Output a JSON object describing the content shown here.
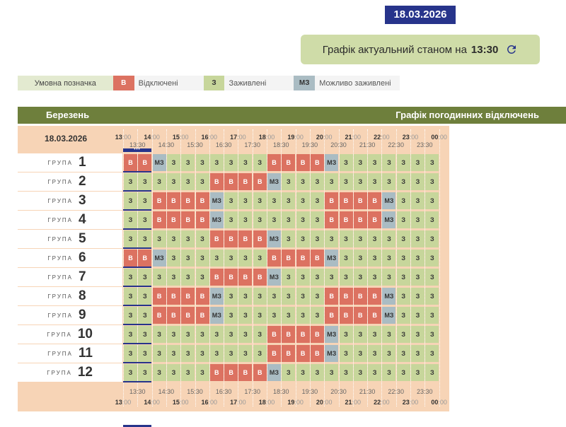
{
  "header": {
    "date": "18.03.2026",
    "status_label": "Графік актуальний станом на",
    "status_time": "13:30",
    "refresh_icon": "refresh-icon"
  },
  "legend": {
    "caption": "Умовна позначка",
    "items": [
      {
        "code": "В",
        "label": "Відключені",
        "color": "#dc7261"
      },
      {
        "code": "З",
        "label": "Заживлені",
        "color": "#c7d69b"
      },
      {
        "code": "МЗ",
        "label": "Можливо заживлені",
        "color": "#aabcc3"
      }
    ]
  },
  "schedule": {
    "month": "Березень",
    "title": "Графік погодинних відключень",
    "date": "18.03.2026",
    "hour_ticks": [
      {
        "h": "13",
        "m": ":00"
      },
      {
        "h": "14",
        "m": ":00"
      },
      {
        "h": "15",
        "m": ":00"
      },
      {
        "h": "16",
        "m": ":00"
      },
      {
        "h": "17",
        "m": ":00"
      },
      {
        "h": "18",
        "m": ":00"
      },
      {
        "h": "19",
        "m": ":00"
      },
      {
        "h": "20",
        "m": ":00"
      },
      {
        "h": "21",
        "m": ":00"
      },
      {
        "h": "22",
        "m": ":00"
      },
      {
        "h": "23",
        "m": ":00"
      },
      {
        "h": "00",
        "m": ":00"
      }
    ],
    "half_ticks": [
      "13:30",
      "14:30",
      "15:30",
      "16:30",
      "17:30",
      "18:30",
      "19:30",
      "20:30",
      "21:30",
      "22:30",
      "23:30"
    ],
    "current_marker": "•••",
    "group_word": "ГРУПА",
    "groups": [
      {
        "num": "1",
        "cells": [
          "В",
          "В",
          "МЗ",
          "З",
          "З",
          "З",
          "З",
          "З",
          "З",
          "З",
          "В",
          "В",
          "В",
          "В",
          "МЗ",
          "З",
          "З",
          "З",
          "З",
          "З",
          "З",
          "З"
        ]
      },
      {
        "num": "2",
        "cells": [
          "З",
          "З",
          "З",
          "З",
          "З",
          "З",
          "В",
          "В",
          "В",
          "В",
          "МЗ",
          "З",
          "З",
          "З",
          "З",
          "З",
          "З",
          "З",
          "З",
          "З",
          "З",
          "З"
        ]
      },
      {
        "num": "3",
        "cells": [
          "З",
          "З",
          "В",
          "В",
          "В",
          "В",
          "МЗ",
          "З",
          "З",
          "З",
          "З",
          "З",
          "З",
          "З",
          "В",
          "В",
          "В",
          "В",
          "МЗ",
          "З",
          "З",
          "З"
        ]
      },
      {
        "num": "4",
        "cells": [
          "З",
          "З",
          "В",
          "В",
          "В",
          "В",
          "МЗ",
          "З",
          "З",
          "З",
          "З",
          "З",
          "З",
          "З",
          "В",
          "В",
          "В",
          "В",
          "МЗ",
          "З",
          "З",
          "З"
        ]
      },
      {
        "num": "5",
        "cells": [
          "З",
          "З",
          "З",
          "З",
          "З",
          "З",
          "В",
          "В",
          "В",
          "В",
          "МЗ",
          "З",
          "З",
          "З",
          "З",
          "З",
          "З",
          "З",
          "З",
          "З",
          "З",
          "З"
        ]
      },
      {
        "num": "6",
        "cells": [
          "В",
          "В",
          "МЗ",
          "З",
          "З",
          "З",
          "З",
          "З",
          "З",
          "З",
          "В",
          "В",
          "В",
          "В",
          "МЗ",
          "З",
          "З",
          "З",
          "З",
          "З",
          "З",
          "З"
        ]
      },
      {
        "num": "7",
        "cells": [
          "З",
          "З",
          "З",
          "З",
          "З",
          "З",
          "В",
          "В",
          "В",
          "В",
          "МЗ",
          "З",
          "З",
          "З",
          "З",
          "З",
          "З",
          "З",
          "З",
          "З",
          "З",
          "З"
        ]
      },
      {
        "num": "8",
        "cells": [
          "З",
          "З",
          "В",
          "В",
          "В",
          "В",
          "МЗ",
          "З",
          "З",
          "З",
          "З",
          "З",
          "З",
          "З",
          "В",
          "В",
          "В",
          "В",
          "МЗ",
          "З",
          "З",
          "З"
        ]
      },
      {
        "num": "9",
        "cells": [
          "З",
          "З",
          "В",
          "В",
          "В",
          "В",
          "МЗ",
          "З",
          "З",
          "З",
          "З",
          "З",
          "З",
          "З",
          "В",
          "В",
          "В",
          "В",
          "МЗ",
          "З",
          "З",
          "З"
        ]
      },
      {
        "num": "10",
        "cells": [
          "З",
          "З",
          "З",
          "З",
          "З",
          "З",
          "З",
          "З",
          "З",
          "З",
          "В",
          "В",
          "В",
          "В",
          "МЗ",
          "З",
          "З",
          "З",
          "З",
          "З",
          "З",
          "З"
        ]
      },
      {
        "num": "11",
        "cells": [
          "З",
          "З",
          "З",
          "З",
          "З",
          "З",
          "З",
          "З",
          "З",
          "З",
          "В",
          "В",
          "В",
          "В",
          "МЗ",
          "З",
          "З",
          "З",
          "З",
          "З",
          "З",
          "З"
        ]
      },
      {
        "num": "12",
        "cells": [
          "З",
          "З",
          "З",
          "З",
          "З",
          "З",
          "В",
          "В",
          "В",
          "В",
          "МЗ",
          "З",
          "З",
          "З",
          "З",
          "З",
          "З",
          "З",
          "З",
          "З",
          "З",
          "З"
        ]
      }
    ]
  }
}
